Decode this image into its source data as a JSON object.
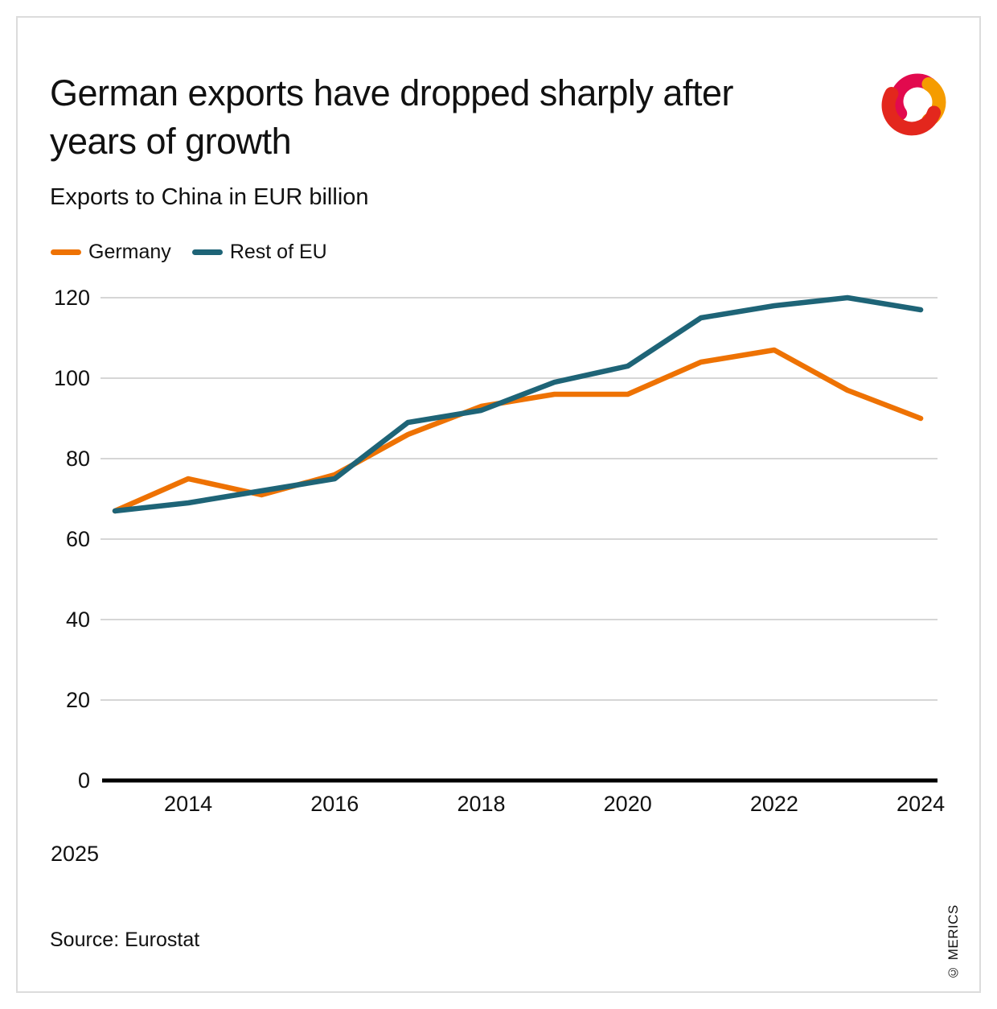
{
  "card": {
    "title": "German exports have dropped sharply after\nyears of growth",
    "subtitle": "Exports to China in EUR billion",
    "footer_year": "2025",
    "source": "Source: Eurostat",
    "watermark": "© MERICS"
  },
  "legend": {
    "items": [
      {
        "label": "Germany",
        "color": "#EE7203"
      },
      {
        "label": "Rest of EU",
        "color": "#1E6477"
      }
    ]
  },
  "logo": {
    "name": "merics-logo",
    "colors": {
      "pink": "#E20A4E",
      "orange": "#F59C00",
      "red": "#E3271D"
    }
  },
  "chart_data": {
    "type": "line",
    "title": "German exports have dropped sharply after years of growth",
    "subtitle": "Exports to China in EUR billion",
    "xlabel": "",
    "ylabel": "EUR billion",
    "x": [
      2013,
      2014,
      2015,
      2016,
      2017,
      2018,
      2019,
      2020,
      2021,
      2022,
      2023,
      2024
    ],
    "series": [
      {
        "name": "Germany",
        "color": "#EE7203",
        "values": [
          67,
          75,
          71,
          76,
          86,
          93,
          96,
          96,
          104,
          107,
          97,
          90
        ]
      },
      {
        "name": "Rest of EU",
        "color": "#1E6477",
        "values": [
          67,
          69,
          72,
          75,
          89,
          92,
          99,
          103,
          115,
          118,
          120,
          117
        ]
      }
    ],
    "ylim": [
      0,
      130
    ],
    "yticks": [
      0,
      20,
      40,
      60,
      80,
      100,
      120
    ],
    "xticks": [
      2014,
      2016,
      2018,
      2020,
      2022,
      2024
    ],
    "grid": true,
    "grid_color": "#C9C9C9",
    "axis_color": "#000000",
    "legend_position": "top-left"
  }
}
